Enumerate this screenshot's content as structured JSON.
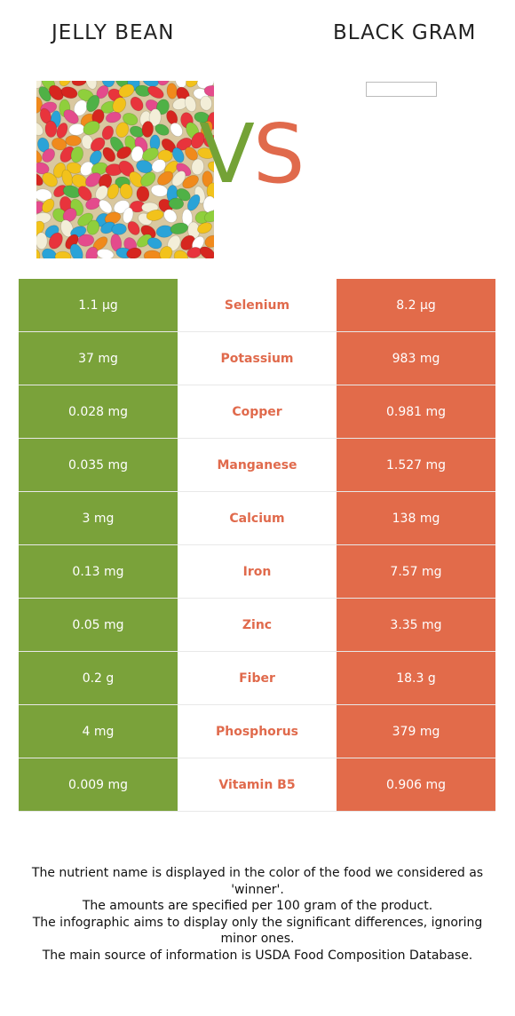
{
  "header": {
    "left_title": "JELLY BEAN",
    "right_title": "BLACK GRAM",
    "vs_v": "V",
    "vs_s": "S"
  },
  "colors": {
    "left_accent": "#7aa23a",
    "right_accent": "#e26b4a",
    "winner_text": "#e06a4c"
  },
  "rows": [
    {
      "nutrient": "Selenium",
      "left": "1.1 µg",
      "right": "8.2 µg"
    },
    {
      "nutrient": "Potassium",
      "left": "37 mg",
      "right": "983 mg"
    },
    {
      "nutrient": "Copper",
      "left": "0.028 mg",
      "right": "0.981 mg"
    },
    {
      "nutrient": "Manganese",
      "left": "0.035 mg",
      "right": "1.527 mg"
    },
    {
      "nutrient": "Calcium",
      "left": "3 mg",
      "right": "138 mg"
    },
    {
      "nutrient": "Iron",
      "left": "0.13 mg",
      "right": "7.57 mg"
    },
    {
      "nutrient": "Zinc",
      "left": "0.05 mg",
      "right": "3.35 mg"
    },
    {
      "nutrient": "Fiber",
      "left": "0.2 g",
      "right": "18.3 g"
    },
    {
      "nutrient": "Phosphorus",
      "left": "4 mg",
      "right": "379 mg"
    },
    {
      "nutrient": "Vitamin B5",
      "left": "0.009 mg",
      "right": "0.906 mg"
    }
  ],
  "footer": {
    "line1": "The nutrient name is displayed in the color of the food we considered as 'winner'.",
    "line2": "The amounts are specified per 100 gram of the product.",
    "line3": "The infographic aims to display only the significant differences, ignoring minor ones.",
    "line4": "The main source of information is USDA Food Composition Database."
  }
}
